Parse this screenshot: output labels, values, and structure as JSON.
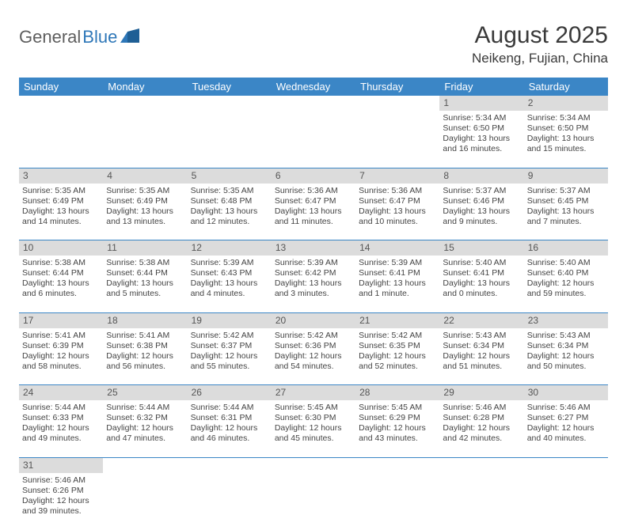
{
  "logo": {
    "general": "General",
    "blue": "Blue"
  },
  "title": "August 2025",
  "location": "Neikeng, Fujian, China",
  "colors": {
    "header_bg": "#3b86c6",
    "header_text": "#ffffff",
    "daynum_bg": "#dcdcdc",
    "rule": "#3b86c6",
    "logo_gray": "#5e5e5e",
    "logo_blue": "#2e77b8"
  },
  "weekdays": [
    "Sunday",
    "Monday",
    "Tuesday",
    "Wednesday",
    "Thursday",
    "Friday",
    "Saturday"
  ],
  "weeks": [
    {
      "nums": [
        "",
        "",
        "",
        "",
        "",
        "1",
        "2"
      ],
      "cells": [
        null,
        null,
        null,
        null,
        null,
        {
          "sunrise": "Sunrise: 5:34 AM",
          "sunset": "Sunset: 6:50 PM",
          "day1": "Daylight: 13 hours",
          "day2": "and 16 minutes."
        },
        {
          "sunrise": "Sunrise: 5:34 AM",
          "sunset": "Sunset: 6:50 PM",
          "day1": "Daylight: 13 hours",
          "day2": "and 15 minutes."
        }
      ]
    },
    {
      "nums": [
        "3",
        "4",
        "5",
        "6",
        "7",
        "8",
        "9"
      ],
      "cells": [
        {
          "sunrise": "Sunrise: 5:35 AM",
          "sunset": "Sunset: 6:49 PM",
          "day1": "Daylight: 13 hours",
          "day2": "and 14 minutes."
        },
        {
          "sunrise": "Sunrise: 5:35 AM",
          "sunset": "Sunset: 6:49 PM",
          "day1": "Daylight: 13 hours",
          "day2": "and 13 minutes."
        },
        {
          "sunrise": "Sunrise: 5:35 AM",
          "sunset": "Sunset: 6:48 PM",
          "day1": "Daylight: 13 hours",
          "day2": "and 12 minutes."
        },
        {
          "sunrise": "Sunrise: 5:36 AM",
          "sunset": "Sunset: 6:47 PM",
          "day1": "Daylight: 13 hours",
          "day2": "and 11 minutes."
        },
        {
          "sunrise": "Sunrise: 5:36 AM",
          "sunset": "Sunset: 6:47 PM",
          "day1": "Daylight: 13 hours",
          "day2": "and 10 minutes."
        },
        {
          "sunrise": "Sunrise: 5:37 AM",
          "sunset": "Sunset: 6:46 PM",
          "day1": "Daylight: 13 hours",
          "day2": "and 9 minutes."
        },
        {
          "sunrise": "Sunrise: 5:37 AM",
          "sunset": "Sunset: 6:45 PM",
          "day1": "Daylight: 13 hours",
          "day2": "and 7 minutes."
        }
      ]
    },
    {
      "nums": [
        "10",
        "11",
        "12",
        "13",
        "14",
        "15",
        "16"
      ],
      "cells": [
        {
          "sunrise": "Sunrise: 5:38 AM",
          "sunset": "Sunset: 6:44 PM",
          "day1": "Daylight: 13 hours",
          "day2": "and 6 minutes."
        },
        {
          "sunrise": "Sunrise: 5:38 AM",
          "sunset": "Sunset: 6:44 PM",
          "day1": "Daylight: 13 hours",
          "day2": "and 5 minutes."
        },
        {
          "sunrise": "Sunrise: 5:39 AM",
          "sunset": "Sunset: 6:43 PM",
          "day1": "Daylight: 13 hours",
          "day2": "and 4 minutes."
        },
        {
          "sunrise": "Sunrise: 5:39 AM",
          "sunset": "Sunset: 6:42 PM",
          "day1": "Daylight: 13 hours",
          "day2": "and 3 minutes."
        },
        {
          "sunrise": "Sunrise: 5:39 AM",
          "sunset": "Sunset: 6:41 PM",
          "day1": "Daylight: 13 hours",
          "day2": "and 1 minute."
        },
        {
          "sunrise": "Sunrise: 5:40 AM",
          "sunset": "Sunset: 6:41 PM",
          "day1": "Daylight: 13 hours",
          "day2": "and 0 minutes."
        },
        {
          "sunrise": "Sunrise: 5:40 AM",
          "sunset": "Sunset: 6:40 PM",
          "day1": "Daylight: 12 hours",
          "day2": "and 59 minutes."
        }
      ]
    },
    {
      "nums": [
        "17",
        "18",
        "19",
        "20",
        "21",
        "22",
        "23"
      ],
      "cells": [
        {
          "sunrise": "Sunrise: 5:41 AM",
          "sunset": "Sunset: 6:39 PM",
          "day1": "Daylight: 12 hours",
          "day2": "and 58 minutes."
        },
        {
          "sunrise": "Sunrise: 5:41 AM",
          "sunset": "Sunset: 6:38 PM",
          "day1": "Daylight: 12 hours",
          "day2": "and 56 minutes."
        },
        {
          "sunrise": "Sunrise: 5:42 AM",
          "sunset": "Sunset: 6:37 PM",
          "day1": "Daylight: 12 hours",
          "day2": "and 55 minutes."
        },
        {
          "sunrise": "Sunrise: 5:42 AM",
          "sunset": "Sunset: 6:36 PM",
          "day1": "Daylight: 12 hours",
          "day2": "and 54 minutes."
        },
        {
          "sunrise": "Sunrise: 5:42 AM",
          "sunset": "Sunset: 6:35 PM",
          "day1": "Daylight: 12 hours",
          "day2": "and 52 minutes."
        },
        {
          "sunrise": "Sunrise: 5:43 AM",
          "sunset": "Sunset: 6:34 PM",
          "day1": "Daylight: 12 hours",
          "day2": "and 51 minutes."
        },
        {
          "sunrise": "Sunrise: 5:43 AM",
          "sunset": "Sunset: 6:34 PM",
          "day1": "Daylight: 12 hours",
          "day2": "and 50 minutes."
        }
      ]
    },
    {
      "nums": [
        "24",
        "25",
        "26",
        "27",
        "28",
        "29",
        "30"
      ],
      "cells": [
        {
          "sunrise": "Sunrise: 5:44 AM",
          "sunset": "Sunset: 6:33 PM",
          "day1": "Daylight: 12 hours",
          "day2": "and 49 minutes."
        },
        {
          "sunrise": "Sunrise: 5:44 AM",
          "sunset": "Sunset: 6:32 PM",
          "day1": "Daylight: 12 hours",
          "day2": "and 47 minutes."
        },
        {
          "sunrise": "Sunrise: 5:44 AM",
          "sunset": "Sunset: 6:31 PM",
          "day1": "Daylight: 12 hours",
          "day2": "and 46 minutes."
        },
        {
          "sunrise": "Sunrise: 5:45 AM",
          "sunset": "Sunset: 6:30 PM",
          "day1": "Daylight: 12 hours",
          "day2": "and 45 minutes."
        },
        {
          "sunrise": "Sunrise: 5:45 AM",
          "sunset": "Sunset: 6:29 PM",
          "day1": "Daylight: 12 hours",
          "day2": "and 43 minutes."
        },
        {
          "sunrise": "Sunrise: 5:46 AM",
          "sunset": "Sunset: 6:28 PM",
          "day1": "Daylight: 12 hours",
          "day2": "and 42 minutes."
        },
        {
          "sunrise": "Sunrise: 5:46 AM",
          "sunset": "Sunset: 6:27 PM",
          "day1": "Daylight: 12 hours",
          "day2": "and 40 minutes."
        }
      ]
    },
    {
      "nums": [
        "31",
        "",
        "",
        "",
        "",
        "",
        ""
      ],
      "cells": [
        {
          "sunrise": "Sunrise: 5:46 AM",
          "sunset": "Sunset: 6:26 PM",
          "day1": "Daylight: 12 hours",
          "day2": "and 39 minutes."
        },
        null,
        null,
        null,
        null,
        null,
        null
      ]
    }
  ]
}
